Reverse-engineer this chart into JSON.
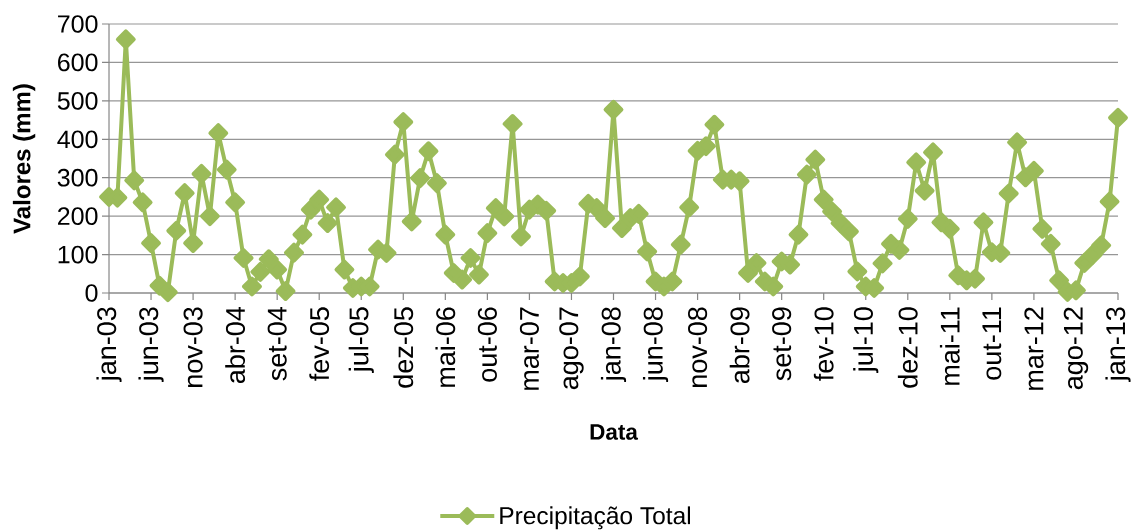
{
  "chart_data": {
    "type": "line",
    "xlabel": "Data",
    "ylabel": "Valores (mm)",
    "categories": [
      "jan-03",
      null,
      null,
      null,
      null,
      "jun-03",
      null,
      null,
      null,
      null,
      "nov-03",
      null,
      null,
      null,
      null,
      "abr-04",
      null,
      null,
      null,
      null,
      "set-04",
      null,
      null,
      null,
      null,
      "fev-05",
      null,
      null,
      null,
      null,
      "jul-05",
      null,
      null,
      null,
      null,
      "dez-05",
      null,
      null,
      null,
      null,
      "mai-06",
      null,
      null,
      null,
      null,
      "out-06",
      null,
      null,
      null,
      null,
      "mar-07",
      null,
      null,
      null,
      null,
      "ago-07",
      null,
      null,
      null,
      null,
      "jan-08",
      null,
      null,
      null,
      null,
      "jun-08",
      null,
      null,
      null,
      null,
      "nov-08",
      null,
      null,
      null,
      null,
      "abr-09",
      null,
      null,
      null,
      null,
      "set-09",
      null,
      null,
      null,
      null,
      "fev-10",
      null,
      null,
      null,
      null,
      "jul-10",
      null,
      null,
      null,
      null,
      "dez-10",
      null,
      null,
      null,
      null,
      "mai-11",
      null,
      null,
      null,
      null,
      "out-11",
      null,
      null,
      null,
      null,
      "mar-12",
      null,
      null,
      null,
      null,
      "ago-12",
      null,
      null,
      null,
      null,
      "jan-13"
    ],
    "series": [
      {
        "name": "Precipitação Total",
        "color": "#9bbb59",
        "values": [
          250,
          248,
          660,
          293,
          236,
          130,
          19,
          2,
          162,
          260,
          130,
          310,
          200,
          416,
          321,
          236,
          91,
          17,
          55,
          88,
          61,
          5,
          105,
          152,
          217,
          243,
          182,
          223,
          61,
          13,
          17,
          17,
          113,
          104,
          360,
          445,
          186,
          299,
          369,
          286,
          152,
          52,
          35,
          91,
          48,
          156,
          221,
          199,
          440,
          147,
          217,
          230,
          214,
          30,
          26,
          26,
          43,
          232,
          221,
          195,
          477,
          169,
          195,
          206,
          108,
          30,
          17,
          30,
          126,
          223,
          370,
          382,
          438,
          295,
          295,
          291,
          52,
          78,
          30,
          17,
          82,
          74,
          152,
          308,
          347,
          243,
          212,
          182,
          160,
          56,
          17,
          13,
          77,
          128,
          112,
          193,
          340,
          266,
          366,
          184,
          167,
          46,
          33,
          37,
          184,
          106,
          104,
          259,
          392,
          301,
          318,
          167,
          128,
          33,
          3,
          7,
          78,
          100,
          124,
          238,
          456
        ]
      }
    ],
    "ylim": [
      0,
      700
    ],
    "yticks": [
      0,
      100,
      200,
      300,
      400,
      500,
      600,
      700
    ],
    "grid": "y",
    "legend": "bottom",
    "marker": "diamond",
    "line_style": "solid"
  }
}
